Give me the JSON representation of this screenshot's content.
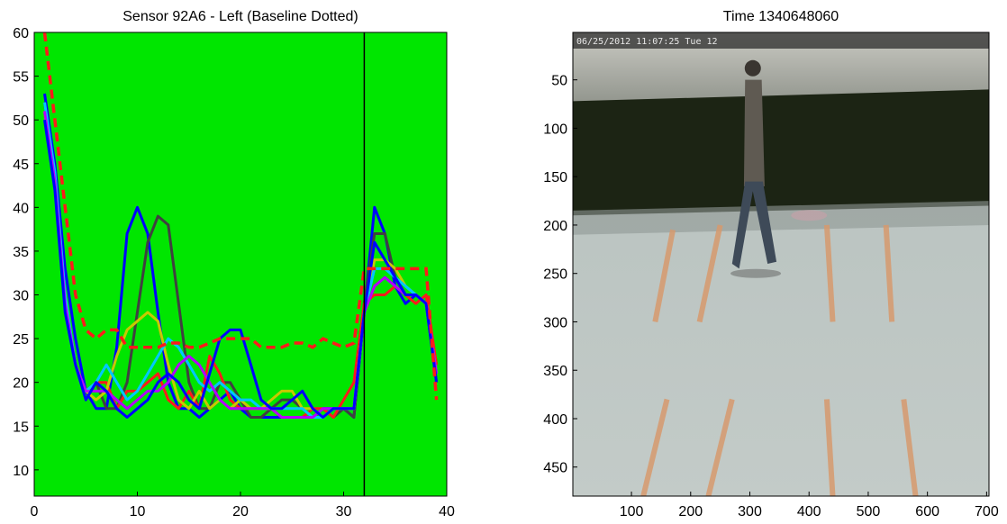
{
  "chart_data": [
    {
      "type": "line",
      "title": "Sensor 92A6 - Left (Baseline Dotted)",
      "xlim": [
        0,
        40
      ],
      "ylim": [
        7,
        60
      ],
      "xticks": [
        "0",
        "10",
        "20",
        "30",
        "40"
      ],
      "yticks": [
        "10",
        "15",
        "20",
        "25",
        "30",
        "35",
        "40",
        "45",
        "50",
        "55",
        "60"
      ],
      "background_color": "#00e600",
      "grid": false,
      "vline_x": 32,
      "baseline": {
        "style": "dashed",
        "color": "#ff1a1a",
        "x": [
          1,
          2,
          3,
          4,
          5,
          6,
          7,
          8,
          9,
          10,
          11,
          12,
          13,
          14,
          15,
          16,
          17,
          18,
          19,
          20,
          21,
          22,
          23,
          24,
          25,
          26,
          27,
          28,
          29,
          30,
          31,
          32,
          33,
          34,
          35,
          36,
          37,
          38,
          39
        ],
        "values": [
          60,
          50,
          40,
          30,
          26,
          25,
          26,
          26,
          24,
          24,
          24,
          24,
          24.5,
          24.5,
          24,
          24,
          24.5,
          25,
          25,
          25,
          25,
          24,
          24,
          24,
          24.5,
          24.5,
          24,
          25,
          24.5,
          24,
          24.5,
          33,
          33,
          33,
          33,
          33,
          33,
          33,
          18
        ]
      },
      "series": [
        {
          "color": "#0000ff",
          "x": [
            1,
            2,
            3,
            4,
            5,
            6,
            7,
            8,
            9,
            10,
            11,
            12,
            13,
            14,
            15,
            16,
            17,
            18,
            19,
            20,
            21,
            22,
            23,
            24,
            25,
            26,
            27,
            28,
            29,
            30,
            31,
            32,
            33,
            34,
            35,
            36,
            37,
            38,
            39
          ],
          "values": [
            53,
            45,
            33,
            25,
            19,
            17,
            17,
            24,
            37,
            40,
            37,
            28,
            20,
            17,
            17,
            16,
            17,
            18,
            19,
            17,
            16,
            16,
            16,
            16,
            16,
            16,
            16,
            17,
            17,
            17,
            16,
            28,
            40,
            37,
            31,
            29,
            30,
            29,
            20
          ]
        },
        {
          "color": "#404040",
          "x": [
            1,
            2,
            3,
            4,
            5,
            6,
            7,
            8,
            9,
            10,
            11,
            12,
            13,
            14,
            15,
            16,
            17,
            18,
            19,
            20,
            21,
            22,
            23,
            24,
            25,
            26,
            27,
            28,
            29,
            30,
            31,
            32,
            33,
            34,
            35,
            36,
            37,
            38,
            39
          ],
          "values": [
            52,
            44,
            30,
            22,
            19,
            20,
            17,
            17,
            20,
            28,
            36,
            39,
            38,
            29,
            20,
            17,
            17,
            20,
            20,
            18,
            16,
            16,
            17,
            18,
            18,
            17,
            16,
            17,
            16,
            17,
            16,
            29,
            37,
            37,
            32,
            30,
            30,
            29,
            22
          ]
        },
        {
          "color": "#ff1a1a",
          "x": [
            1,
            2,
            3,
            4,
            5,
            6,
            7,
            8,
            9,
            10,
            11,
            12,
            13,
            14,
            15,
            16,
            17,
            18,
            19,
            20,
            21,
            22,
            23,
            24,
            25,
            26,
            27,
            28,
            29,
            30,
            31,
            32,
            33,
            34,
            35,
            36,
            37,
            38,
            39
          ],
          "values": [
            51,
            43,
            29,
            22,
            19,
            20,
            20,
            17,
            19,
            19,
            20,
            21,
            18,
            17,
            19,
            17,
            23,
            21,
            18,
            17,
            17,
            17,
            17,
            16,
            16,
            16,
            17,
            17,
            16,
            18,
            20,
            29,
            30,
            30,
            31,
            30,
            29,
            30,
            22
          ]
        },
        {
          "color": "#c8c800",
          "x": [
            1,
            2,
            3,
            4,
            5,
            6,
            7,
            8,
            9,
            10,
            11,
            12,
            13,
            14,
            15,
            16,
            17,
            18,
            19,
            20,
            21,
            22,
            23,
            24,
            25,
            26,
            27,
            28,
            29,
            30,
            31,
            32,
            33,
            34,
            35,
            36,
            37,
            38,
            39
          ],
          "values": [
            51,
            43,
            29,
            22,
            19,
            18,
            19,
            23,
            26,
            27,
            28,
            27,
            22,
            18,
            17,
            19,
            17,
            18,
            17,
            18,
            17,
            17,
            18,
            19,
            19,
            17,
            17,
            16,
            17,
            17,
            17,
            28,
            34,
            34,
            33,
            31,
            30,
            29,
            21
          ]
        },
        {
          "color": "#00c8ff",
          "x": [
            1,
            2,
            3,
            4,
            5,
            6,
            7,
            8,
            9,
            10,
            11,
            12,
            13,
            14,
            15,
            16,
            17,
            18,
            19,
            20,
            21,
            22,
            23,
            24,
            25,
            26,
            27,
            28,
            29,
            30,
            31,
            32,
            33,
            34,
            35,
            36,
            37,
            38,
            39
          ],
          "values": [
            52,
            44,
            30,
            22,
            19,
            20,
            22,
            20,
            18,
            19,
            21,
            23,
            25,
            24,
            22,
            20,
            19,
            20,
            19,
            18,
            18,
            17,
            17,
            17,
            17,
            17,
            16,
            16,
            17,
            17,
            17,
            28,
            33,
            33,
            32,
            31,
            30,
            29,
            21
          ]
        },
        {
          "color": "#b400ff",
          "x": [
            1,
            2,
            3,
            4,
            5,
            6,
            7,
            8,
            9,
            10,
            11,
            12,
            13,
            14,
            15,
            16,
            17,
            18,
            19,
            20,
            21,
            22,
            23,
            24,
            25,
            26,
            27,
            28,
            29,
            30,
            31,
            32,
            33,
            34,
            35,
            36,
            37,
            38,
            39
          ],
          "values": [
            51,
            43,
            29,
            22,
            19,
            19,
            19,
            18,
            17,
            18,
            19,
            19,
            20,
            22,
            23,
            22,
            20,
            18,
            17,
            17,
            17,
            17,
            17,
            16,
            16,
            16,
            16,
            17,
            17,
            17,
            17,
            28,
            31,
            32,
            31,
            30,
            30,
            29,
            21
          ]
        },
        {
          "color": "#0000ff",
          "x": [
            1,
            2,
            3,
            4,
            5,
            6,
            7,
            8,
            9,
            10,
            11,
            12,
            13,
            14,
            15,
            16,
            17,
            18,
            19,
            20,
            21,
            22,
            23,
            24,
            25,
            26,
            27,
            28,
            29,
            30,
            31,
            32,
            33,
            34,
            35,
            36,
            37,
            38,
            39
          ],
          "values": [
            50,
            42,
            28,
            22,
            18,
            20,
            19,
            17,
            16,
            17,
            18,
            20,
            21,
            20,
            18,
            17,
            21,
            25,
            26,
            26,
            22,
            18,
            17,
            17,
            18,
            19,
            17,
            16,
            17,
            17,
            17,
            28,
            36,
            34,
            32,
            30,
            30,
            29,
            20
          ]
        }
      ]
    },
    {
      "type": "image",
      "title": "Time 1340648060",
      "xlim": [
        1,
        704
      ],
      "ylim": [
        480,
        1
      ],
      "xticks": [
        "100",
        "200",
        "300",
        "400",
        "500",
        "600",
        "700"
      ],
      "yticks": [
        "50",
        "100",
        "150",
        "200",
        "250",
        "300",
        "350",
        "400",
        "450"
      ],
      "overlay_text": "06/25/2012 11:07:25 Tue 12"
    }
  ]
}
